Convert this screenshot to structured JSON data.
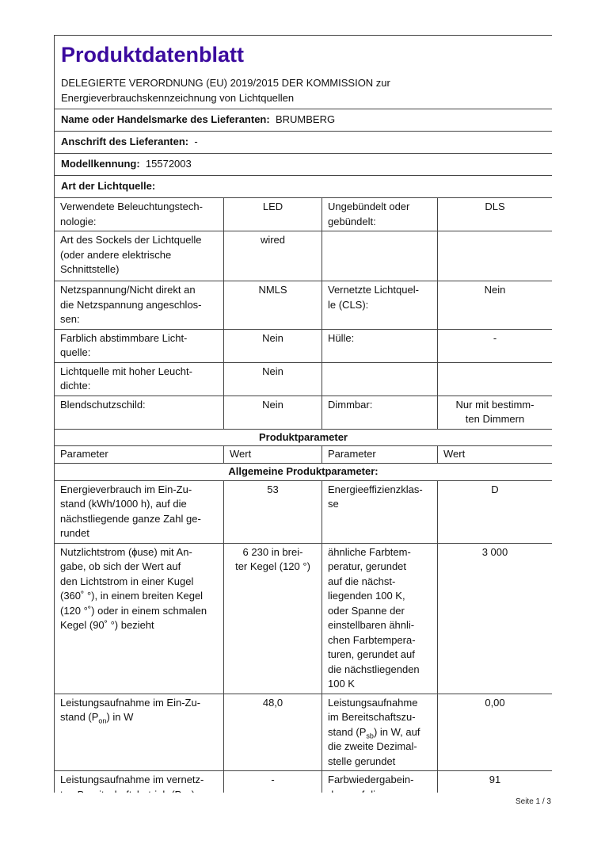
{
  "header": {
    "title": "Produktdatenblatt",
    "subtitle_line1": "DELEGIERTE VERORDNUNG (EU) 2019/2015 DER KOMMISSION zur",
    "subtitle_line2": "Energieverbrauchskennzeichnung von Lichtquellen"
  },
  "supplier": {
    "name_label": "Name oder Handelsmarke des Lieferanten:",
    "name_value": "BRUMBERG",
    "address_label": "Anschrift des Lieferanten:",
    "address_value": "-",
    "model_label": "Modellkennung:",
    "model_value": "15572003",
    "type_label": "Art der Lichtquelle:"
  },
  "light_source_rows": [
    {
      "p1": "Verwendete Beleuchtungstech-\nnologie:",
      "v1": "LED",
      "p2": "Ungebündelt oder\ngebündelt:",
      "v2": "DLS"
    },
    {
      "p1": "Art des Sockels der Lichtquelle\n(oder andere elektrische\nSchnittstelle)",
      "v1": "wired",
      "p2": "",
      "v2": ""
    },
    {
      "p1": "Netzspannung/Nicht direkt an\ndie Netzspannung angeschlos-\nsen:",
      "v1": "NMLS",
      "p2": "Vernetzte Lichtquel-\nle (CLS):",
      "v2": "Nein"
    },
    {
      "p1": "Farblich abstimmbare Licht-\nquelle:",
      "v1": "Nein",
      "p2": "Hülle:",
      "v2": "-"
    },
    {
      "p1": "Lichtquelle mit hoher Leucht-\ndichte:",
      "v1": "Nein",
      "p2": "",
      "v2": ""
    },
    {
      "p1": "Blendschutzschild:",
      "v1": "Nein",
      "p2": "Dimmbar:",
      "v2": "Nur mit bestimm-\nten Dimmern"
    }
  ],
  "product_params": {
    "section_title": "Produktparameter",
    "col_param": "Parameter",
    "col_value": "Wert",
    "general_title": "Allgemeine Produktparameter:",
    "rows": [
      {
        "p1": "Energieverbrauch im Ein-Zu-\nstand (kWh/1000 h), auf die\nnächstliegende ganze Zahl ge-\nrundet",
        "v1": "53",
        "p2": "Energieeffizienzklas-\nse",
        "v2": "D"
      },
      {
        "p1": "Nutzlichtstrom (ɸuse) mit An-\ngabe, ob sich der Wert auf\nden Lichtstrom in einer Kugel\n(360˚ °), in einem breiten Kegel\n(120 °˚) oder in einem schmalen\nKegel (90˚ °) bezieht",
        "v1": "6 230 in brei-\nter Kegel (120 °)",
        "p2": "ähnliche Farbtem-\nperatur, gerundet\nauf die nächst-\nliegenden 100 K,\noder Spanne der\neinstellbaren ähnli-\nchen Farbtempera-\nturen, gerundet auf\ndie nächstliegenden\n100 K",
        "v2": "3 000"
      },
      {
        "p1a": "Leistungsaufnahme im Ein-Zu-\nstand (P",
        "p1sub": "on",
        "p1b": ") in W",
        "v1": "48,0",
        "p2a": "Leistungsaufnahme\nim Bereitschaftszu-\nstand (P",
        "p2sub": "sb",
        "p2b": ") in W, auf\ndie zweite Dezimal-\nstelle gerundet",
        "v2": "0,00"
      },
      {
        "p1a": "Leistungsaufnahme im vernetz-\nten Bereitschaftsbetrieb (P",
        "p1sub": "net",
        "p1b": ")",
        "v1": "-",
        "p2": "Farbwiedergabein-\ndex, auf die",
        "v2": "91"
      }
    ]
  },
  "footer": {
    "page": "Seite 1 / 3"
  }
}
